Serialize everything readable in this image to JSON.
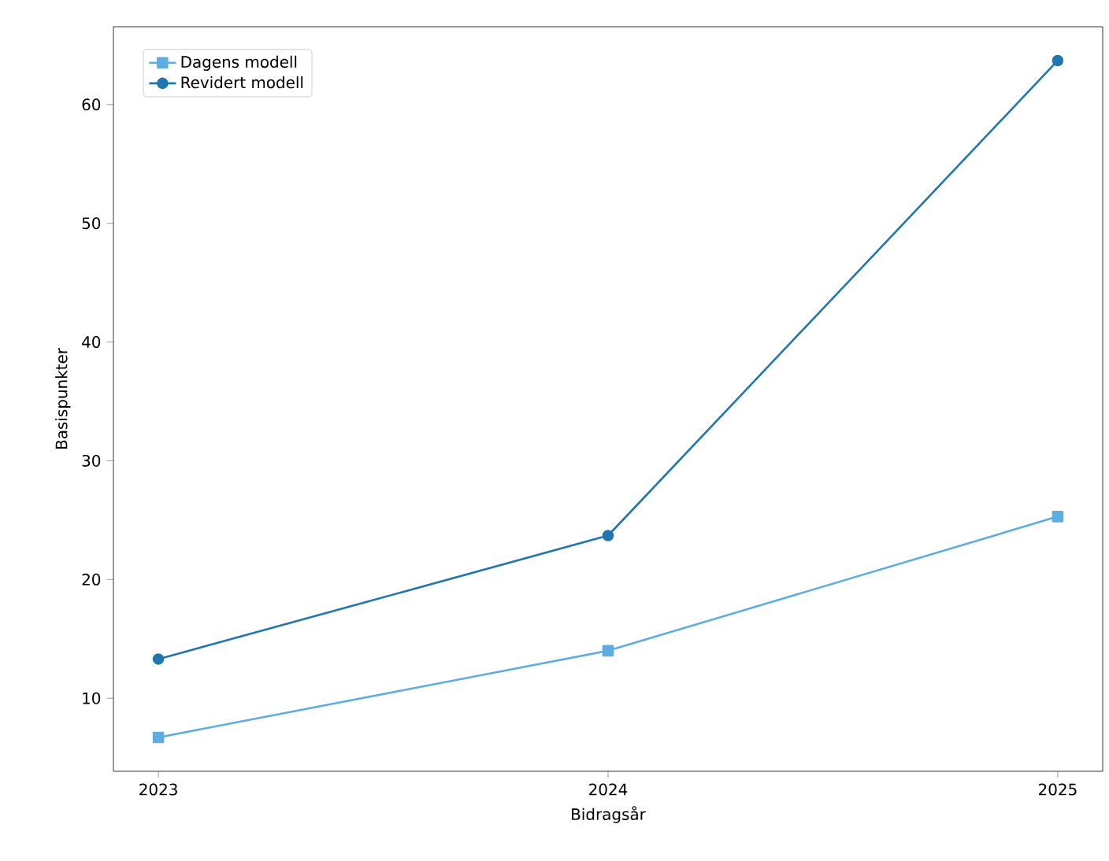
{
  "chart_data": {
    "type": "line",
    "xlabel": "Bidragsår",
    "ylabel": "Basispunkter",
    "x": [
      2023,
      2024,
      2025
    ],
    "series": [
      {
        "name": "Dagens modell",
        "color": "#5dade2",
        "marker": "square",
        "values": [
          6.7,
          14.0,
          25.3
        ]
      },
      {
        "name": "Revidert modell",
        "color": "#2176ae",
        "marker": "circle",
        "values": [
          13.3,
          23.7,
          63.7
        ]
      }
    ],
    "xlim": [
      2022.9,
      2025.1
    ],
    "ylim": [
      3.85,
      66.55
    ],
    "xticks": [
      2023,
      2024,
      2025
    ],
    "yticks": [
      10,
      20,
      30,
      40,
      50,
      60
    ],
    "grid": false,
    "legend": "top left"
  }
}
